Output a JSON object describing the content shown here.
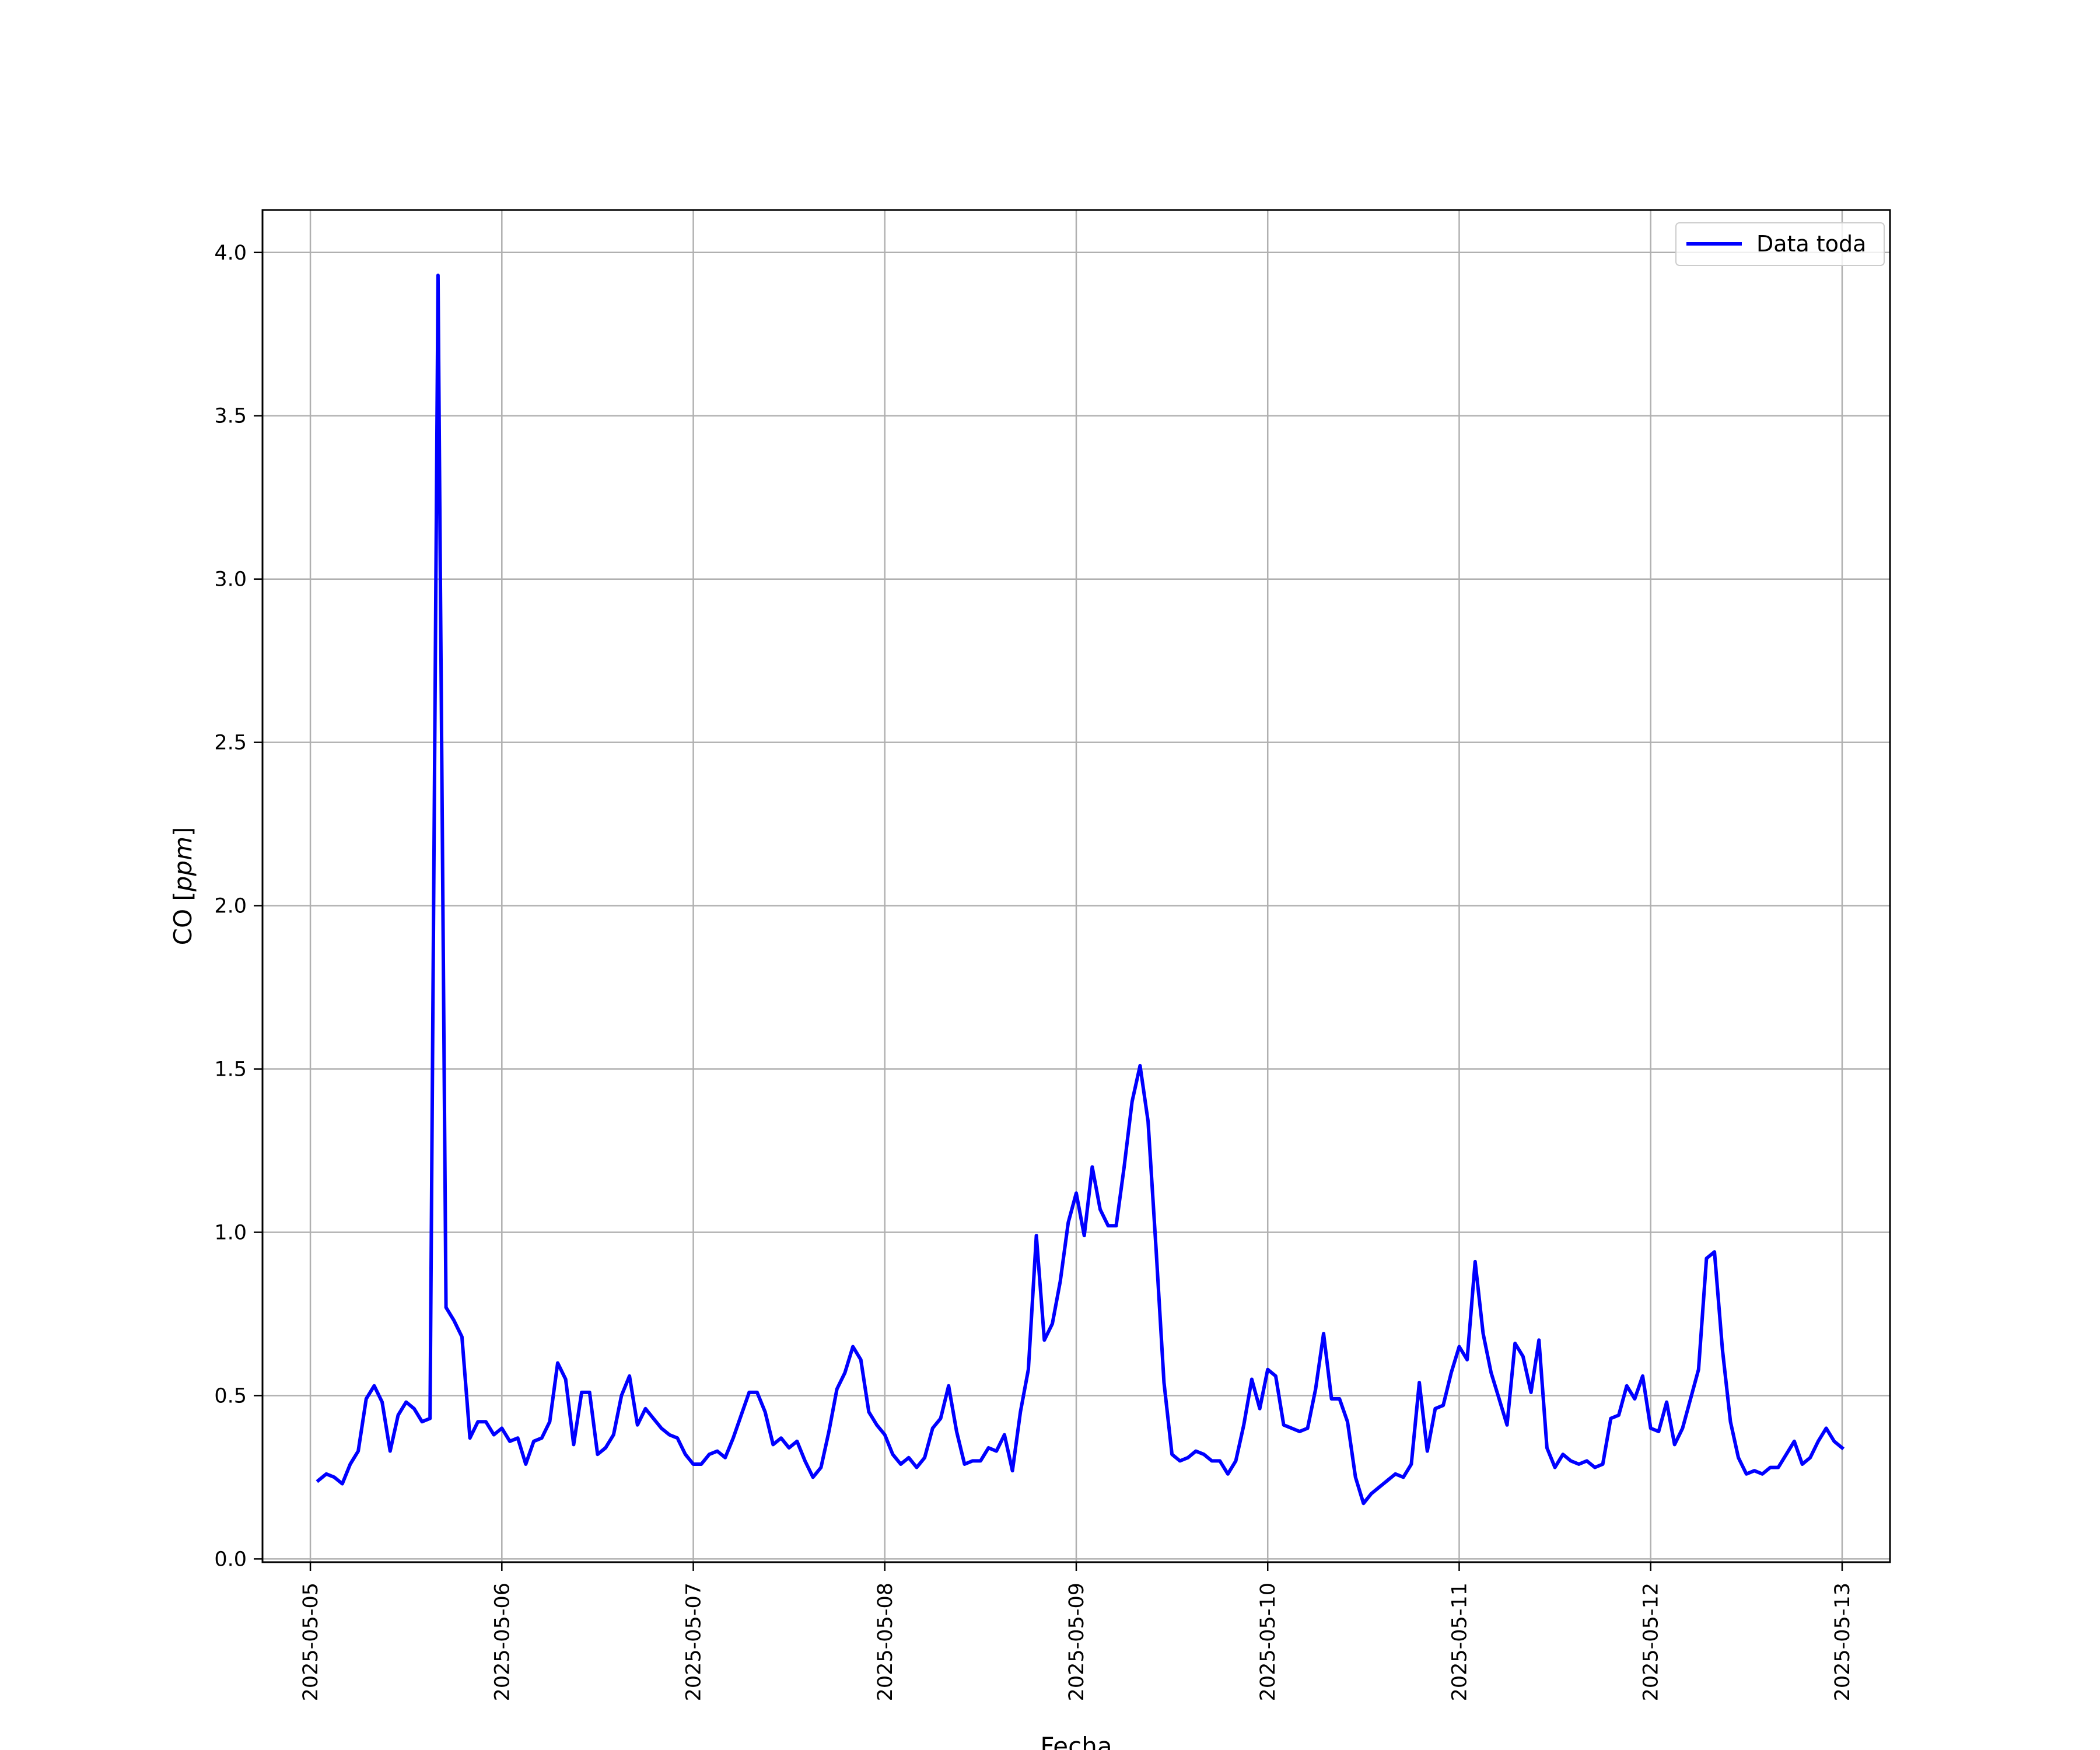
{
  "chart_data": {
    "type": "line",
    "title": "",
    "xlabel": "Fecha",
    "ylabel": "CO [ppm]",
    "ylabel_parts": {
      "prefix": "CO [",
      "unit": "ppm",
      "suffix": "]"
    },
    "xlim": [
      "2025-05-04T18:00",
      "2025-05-13T06:00"
    ],
    "ylim": [
      -0.01,
      4.13
    ],
    "x_ticks": [
      "2025-05-05",
      "2025-05-06",
      "2025-05-07",
      "2025-05-08",
      "2025-05-09",
      "2025-05-10",
      "2025-05-11",
      "2025-05-12",
      "2025-05-13"
    ],
    "y_ticks": [
      "0.0",
      "0.5",
      "1.0",
      "1.5",
      "2.0",
      "2.5",
      "3.0",
      "3.5",
      "4.0"
    ],
    "grid": true,
    "legend_position": "top-right",
    "series": [
      {
        "name": "Data toda",
        "color": "#0000ff",
        "start": "2025-05-05T01:00",
        "interval_hours": 1,
        "values": [
          0.24,
          0.26,
          0.25,
          0.23,
          0.29,
          0.33,
          0.49,
          0.53,
          0.48,
          0.33,
          0.44,
          0.48,
          0.46,
          0.42,
          0.43,
          3.93,
          0.77,
          0.73,
          0.68,
          0.37,
          0.42,
          0.42,
          0.38,
          0.4,
          0.36,
          0.37,
          0.29,
          0.36,
          0.37,
          0.42,
          0.6,
          0.55,
          0.35,
          0.51,
          0.51,
          0.32,
          0.34,
          0.38,
          0.5,
          0.56,
          0.41,
          0.46,
          0.43,
          0.4,
          0.38,
          0.37,
          0.32,
          0.29,
          0.29,
          0.32,
          0.33,
          0.31,
          0.37,
          0.44,
          0.51,
          0.51,
          0.45,
          0.35,
          0.37,
          0.34,
          0.36,
          0.3,
          0.25,
          0.28,
          0.39,
          0.52,
          0.57,
          0.65,
          0.61,
          0.45,
          0.41,
          0.38,
          0.32,
          0.29,
          0.31,
          0.28,
          0.31,
          0.4,
          0.43,
          0.53,
          0.39,
          0.29,
          0.3,
          0.3,
          0.34,
          0.33,
          0.38,
          0.27,
          0.45,
          0.58,
          0.99,
          0.67,
          0.72,
          0.85,
          1.03,
          1.12,
          0.99,
          1.2,
          1.07,
          1.02,
          1.02,
          1.2,
          1.4,
          1.51,
          1.34,
          0.95,
          0.54,
          0.32,
          0.3,
          0.31,
          0.33,
          0.32,
          0.3,
          0.3,
          0.26,
          0.3,
          0.41,
          0.55,
          0.46,
          0.58,
          0.56,
          0.41,
          0.4,
          0.39,
          0.4,
          0.52,
          0.69,
          0.49,
          0.49,
          0.42,
          0.25,
          0.17,
          0.2,
          0.22,
          0.24,
          0.26,
          0.25,
          0.29,
          0.54,
          0.33,
          0.46,
          0.47,
          0.57,
          0.65,
          0.61,
          0.91,
          0.69,
          0.57,
          0.49,
          0.41,
          0.66,
          0.62,
          0.51,
          0.67,
          0.34,
          0.28,
          0.32,
          0.3,
          0.29,
          0.3,
          0.28,
          0.29,
          0.43,
          0.44,
          0.53,
          0.49,
          0.56,
          0.4,
          0.39,
          0.48,
          0.35,
          0.4,
          0.49,
          0.58,
          0.92,
          0.94,
          0.64,
          0.42,
          0.31,
          0.26,
          0.27,
          0.26,
          0.28,
          0.28,
          0.32,
          0.36,
          0.29,
          0.31,
          0.36,
          0.4,
          0.36,
          0.34
        ]
      }
    ]
  }
}
